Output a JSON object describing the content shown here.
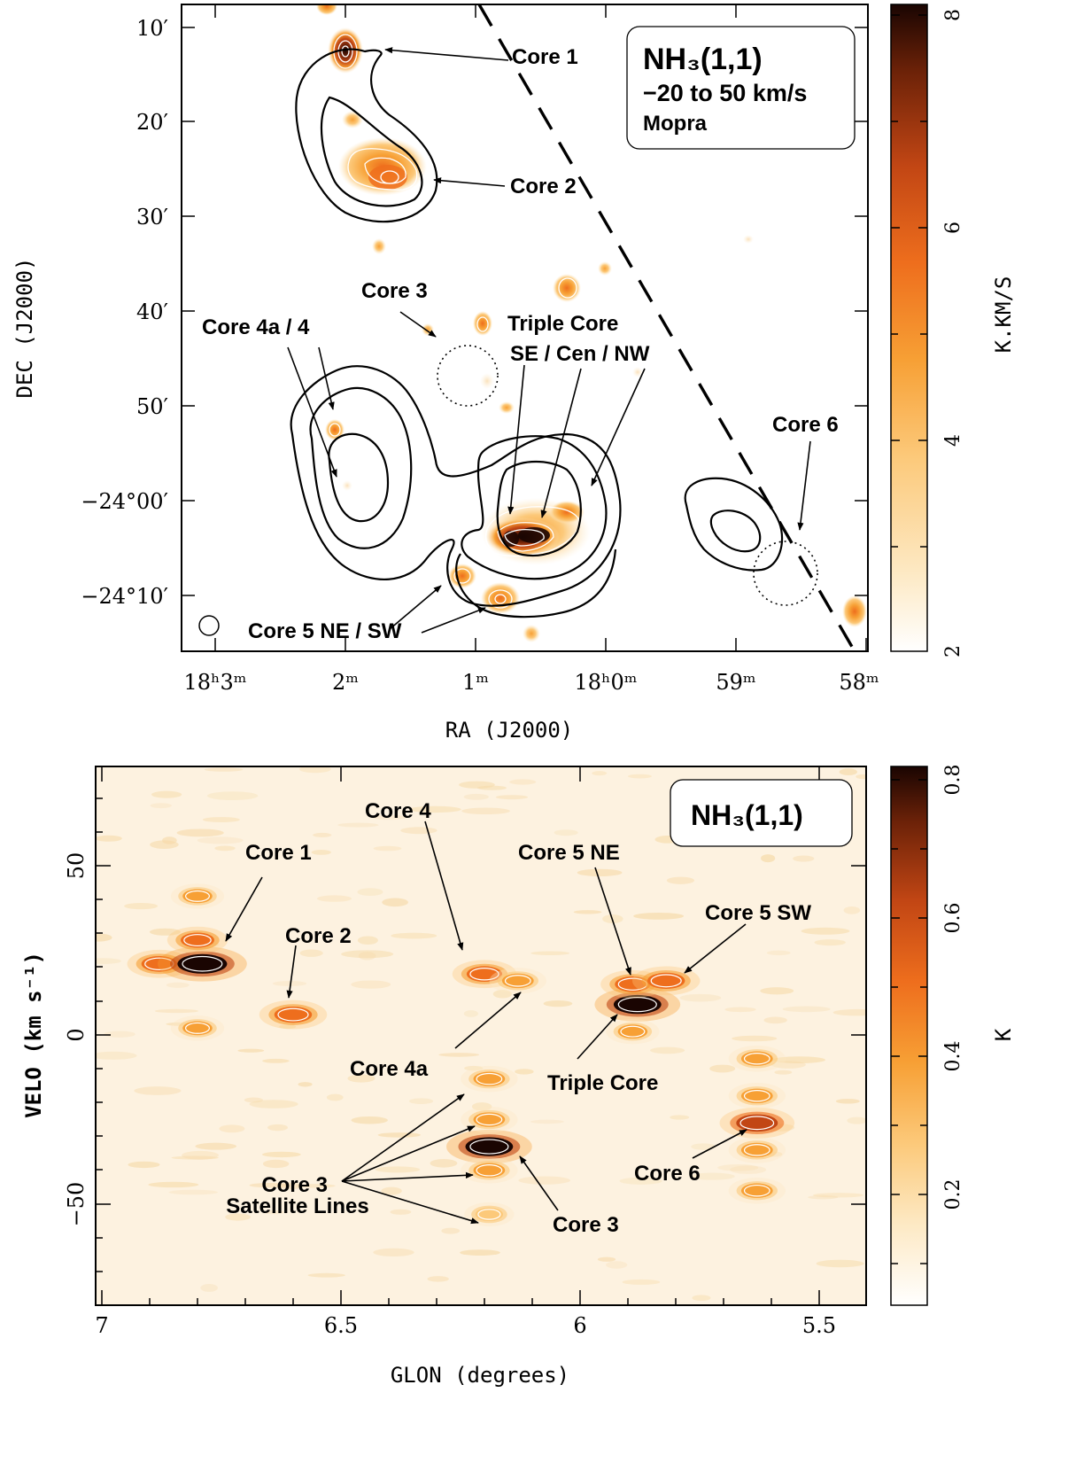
{
  "colors": {
    "colormap": [
      "#ffffff",
      "#fde9c4",
      "#fcc97a",
      "#f7a035",
      "#ee6e1d",
      "#c24614",
      "#6a2108",
      "#1a0502"
    ],
    "contour": "#000000",
    "ink": "#000000"
  },
  "chart_data": [
    {
      "type": "heatmap",
      "title": "NH₃(1,1)",
      "subtitle_lines": [
        "−20 to 50 km/s",
        "Mopra"
      ],
      "xlabel": "RA (J2000)",
      "ylabel": "DEC (J2000)",
      "x_tick_labels": [
        "18ʰ3ᵐ",
        "2ᵐ",
        "1ᵐ",
        "18ʰ0ᵐ",
        "59ᵐ",
        "58ᵐ"
      ],
      "y_tick_labels": [
        "10′",
        "20′",
        "30′",
        "40′",
        "50′",
        "−24°00′",
        "−24°10′"
      ],
      "colorbar": {
        "label": "K.KM/S",
        "range": [
          2,
          8
        ],
        "ticks": [
          "2",
          "4",
          "6",
          "8"
        ]
      },
      "annotations": [
        "Core 1",
        "Core 2",
        "Core 3",
        "Triple Core",
        "SE / Cen / NW",
        "Core 4a / 4",
        "Core 5 NE / SW",
        "Core 6"
      ],
      "sources": [
        {
          "name": "Core 1",
          "peak": 8.0
        },
        {
          "name": "Core 2",
          "peak": 5.5
        },
        {
          "name": "Core 3",
          "peak": 0
        },
        {
          "name": "Core 4",
          "peak": 3.5
        },
        {
          "name": "Triple Core",
          "peak": 8.0
        },
        {
          "name": "Core 5 NE",
          "peak": 4.0
        },
        {
          "name": "Core 5 SW",
          "peak": 4.5
        },
        {
          "name": "Core 6",
          "peak": 0
        }
      ]
    },
    {
      "type": "heatmap",
      "title": "NH₃(1,1)",
      "xlabel": "GLON (degrees)",
      "ylabel": "VELO (km s⁻¹)",
      "x_tick_labels": [
        "7",
        "6.5",
        "6",
        "5.5"
      ],
      "y_tick_labels": [
        "50",
        "0",
        "−50"
      ],
      "xlim": [
        7.0,
        5.42
      ],
      "ylim": [
        -78,
        80
      ],
      "colorbar": {
        "label": "K",
        "range": [
          0.02,
          0.8
        ],
        "ticks": [
          "0.2",
          "0.4",
          "0.6",
          "0.8"
        ]
      },
      "annotations": [
        "Core 1",
        "Core 2",
        "Core 4",
        "Core 4a",
        "Core 5 NE",
        "Core 5 SW",
        "Triple Core",
        "Core 3 Satellite Lines",
        "Core 3",
        "Core 6"
      ],
      "lines": [
        {
          "glon": 6.88,
          "velo": 21,
          "peak": 0.45
        },
        {
          "glon": 6.79,
          "velo": 21,
          "peak": 0.8
        },
        {
          "glon": 6.8,
          "velo": 28,
          "peak": 0.4
        },
        {
          "glon": 6.8,
          "velo": 41,
          "peak": 0.3
        },
        {
          "glon": 6.8,
          "velo": 2,
          "peak": 0.3
        },
        {
          "glon": 6.6,
          "velo": 6,
          "peak": 0.5
        },
        {
          "glon": 6.2,
          "velo": 18,
          "peak": 0.45
        },
        {
          "glon": 6.13,
          "velo": 16,
          "peak": 0.35
        },
        {
          "glon": 6.19,
          "velo": -33,
          "peak": 0.75
        },
        {
          "glon": 6.19,
          "velo": -13,
          "peak": 0.35
        },
        {
          "glon": 6.19,
          "velo": -25,
          "peak": 0.35
        },
        {
          "glon": 6.19,
          "velo": -40,
          "peak": 0.35
        },
        {
          "glon": 6.19,
          "velo": -53,
          "peak": 0.25
        },
        {
          "glon": 5.88,
          "velo": 9,
          "peak": 0.75
        },
        {
          "glon": 5.89,
          "velo": 15,
          "peak": 0.45
        },
        {
          "glon": 5.82,
          "velo": 16,
          "peak": 0.5
        },
        {
          "glon": 5.89,
          "velo": 1,
          "peak": 0.3
        },
        {
          "glon": 5.63,
          "velo": -26,
          "peak": 0.6
        },
        {
          "glon": 5.63,
          "velo": -7,
          "peak": 0.35
        },
        {
          "glon": 5.63,
          "velo": -18,
          "peak": 0.35
        },
        {
          "glon": 5.63,
          "velo": -34,
          "peak": 0.35
        },
        {
          "glon": 5.63,
          "velo": -46,
          "peak": 0.35
        }
      ]
    }
  ]
}
